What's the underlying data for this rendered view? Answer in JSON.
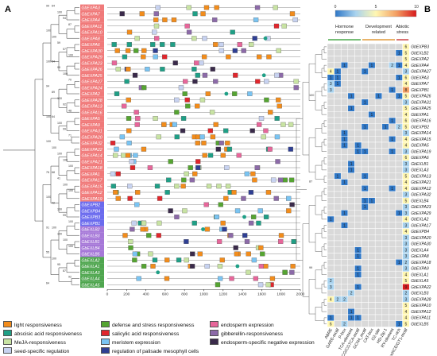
{
  "panels": {
    "a": "A",
    "b": "B"
  },
  "colors": {
    "light": "#f28c1b",
    "abscisic": "#1f9f86",
    "meja": "#c8e3a3",
    "seed": "#c7d2f0",
    "defense": "#55a431",
    "salicylic": "#e0262c",
    "meristem": "#7ac4f2",
    "palisade": "#2f3f93",
    "endosperm": "#e7669a",
    "gibberellin": "#8c6aa8",
    "endosperm_neg": "#3a2a4a",
    "groups": [
      "#f07a7a",
      "#6b6bee",
      "#a678d8",
      "#4fa64f"
    ]
  },
  "tree_support": [
    "99",
    "64",
    "100",
    "94",
    "87",
    "100",
    "100",
    "59",
    "57",
    "100",
    "100",
    "54",
    "99",
    "100",
    "70",
    "94",
    "89",
    "100",
    "92",
    "48",
    "100",
    "64",
    "100",
    "99",
    "71",
    "100",
    "100",
    "100",
    "100",
    "100",
    "76",
    "68",
    "41",
    "100",
    "100",
    "100",
    "42",
    "100",
    "99",
    "100",
    "91",
    "100",
    "100",
    "100",
    "100",
    "55",
    "100",
    "95",
    "87",
    "92",
    "64"
  ],
  "genes_a": [
    "GbEXPA3",
    "GbEXPA7",
    "GbEXPA4",
    "GbEXPA11",
    "GbEXPA10",
    "GbEXPA8",
    "GbEXPA6",
    "GbEXPA30",
    "GbEXPA29",
    "GbEXPA23",
    "GbEXPA26",
    "GbEXPA25",
    "GbEXPA27",
    "GbEXPA24",
    "GbEXPA2",
    "GbEXPA28",
    "GbEXPA13",
    "GbEXPA16",
    "GbEXPA5",
    "GbEXPA9",
    "GbEXPA31",
    "GbEXPA20",
    "GbEXPA32",
    "GbEXPA22",
    "GbEXPA14",
    "GbEXPA21",
    "GbEXPA18",
    "GbEXPA1",
    "GbEXPA17",
    "GbEXPA15",
    "GbEXPA12",
    "GbEXPA19",
    "GbEXPB2",
    "GbEXPB4",
    "GbEXPB3",
    "GbEXPB1",
    "GbEXLB2",
    "GbEXLB3",
    "GbEXLB1",
    "GbEXLB4",
    "GbEXLB5",
    "GbEXLA2",
    "GbEXLA1",
    "GbEXLA3",
    "GbEXLA4",
    "GbEXLA5"
  ],
  "group_of_gene": [
    0,
    0,
    0,
    0,
    0,
    0,
    0,
    0,
    0,
    0,
    0,
    0,
    0,
    0,
    0,
    0,
    0,
    0,
    0,
    0,
    0,
    0,
    0,
    0,
    0,
    0,
    0,
    0,
    0,
    0,
    0,
    0,
    1,
    1,
    1,
    1,
    2,
    2,
    2,
    2,
    2,
    3,
    3,
    3,
    3,
    3
  ],
  "axis_a": {
    "ticks": [
      "0",
      "200",
      "400",
      "600",
      "800",
      "1000",
      "1200",
      "1400",
      "1600",
      "1800",
      "2000"
    ],
    "max": 2000
  },
  "legend": [
    {
      "label": "light responsiveness",
      "color_key": "light"
    },
    {
      "label": "abscisic acid responsiveness",
      "color_key": "abscisic"
    },
    {
      "label": "MeJA-responsiveness",
      "color_key": "meja"
    },
    {
      "label": "seed-specific regulation",
      "color_key": "seed"
    },
    {
      "label": "defense and stress responsiveness",
      "color_key": "defense"
    },
    {
      "label": "salicylic acid responsiveness",
      "color_key": "salicylic"
    },
    {
      "label": "meristem expression",
      "color_key": "meristem"
    },
    {
      "label": "regulation of palisade mesophyll cells",
      "color_key": "palisade"
    },
    {
      "label": "endosperm expression",
      "color_key": "endosperm"
    },
    {
      "label": "gibberellin-responsiveness",
      "color_key": "gibberellin"
    },
    {
      "label": "endosperm-specific negative expression",
      "color_key": "endosperm_neg"
    }
  ],
  "colorbar": {
    "min": "0",
    "mid": "5",
    "max": "10",
    "colors": [
      "#2f77c6",
      "#a8d2ee",
      "#fff7b2",
      "#f3a064",
      "#d7191c"
    ]
  },
  "categories_b": [
    {
      "label": "Hormone response",
      "color": "#4aa84a"
    },
    {
      "label": "Development related",
      "color": "#e09a3a"
    },
    {
      "label": "Abiotic stress",
      "color": "#d05050"
    }
  ],
  "columns_b": [
    "ABRE",
    "GARE-motif",
    "P-box",
    "TCA-element",
    "TGACG/CGTCA-motif",
    "GCN4_motif",
    "CAT-box",
    "O2-site",
    "HD-Zip 1",
    "RY-element",
    "TC-rich",
    "G-box/ACE/GT1-motif"
  ],
  "genes_b": [
    "GbEXPB3",
    "GbEXLB2",
    "GbEXPA2",
    "GbEXPA4",
    "GbEXPA27",
    "GbEXPA3",
    "GbEXPA7",
    "GbEXPB1",
    "GbEXPA26",
    "GbEXPA31",
    "GbEXPA25",
    "GbEXPA1",
    "GbEXPA16",
    "GbEXPB2",
    "GbEXPA14",
    "GbEXPA15",
    "GbEXPA5",
    "GbEXPA19",
    "GbEXPA6",
    "GbEXLB1",
    "GbEXLA3",
    "GbEXPA13",
    "GbEXPA21",
    "GbEXPA12",
    "GbEXPA32",
    "GbEXLB4",
    "GbEXPA23",
    "GbEXPA29",
    "GbEXLA2",
    "GbEXPA17",
    "GbEXPB4",
    "GbEXPA20",
    "GbEXPA30",
    "GbEXLA4",
    "GbEXPA8",
    "GbEXPA18",
    "GbEXPA9",
    "GbEXLA1",
    "GbEXLA5",
    "GbEXPA22",
    "GbEXLB3",
    "GbEXPA28",
    "GbEXPA10",
    "GbEXPA12",
    "GbEXPA11",
    "GbEXLB5"
  ],
  "matrix_b": [
    [
      0,
      0,
      0,
      0,
      0,
      0,
      0,
      0,
      0,
      0,
      0,
      6
    ],
    [
      0,
      0,
      0,
      0,
      0,
      0,
      0,
      0,
      0,
      0,
      1,
      5
    ],
    [
      0,
      0,
      0,
      0,
      0,
      0,
      0,
      0,
      0,
      0,
      0,
      5
    ],
    [
      0,
      0,
      1,
      0,
      0,
      0,
      1,
      0,
      0,
      2,
      1,
      4
    ],
    [
      4,
      1,
      0,
      0,
      0,
      1,
      0,
      0,
      0,
      0,
      0,
      3
    ],
    [
      1,
      1,
      0,
      0,
      0,
      0,
      0,
      0,
      0,
      0,
      1,
      6
    ],
    [
      3,
      1,
      0,
      0,
      0,
      0,
      0,
      0,
      0,
      0,
      0,
      4
    ],
    [
      3,
      0,
      0,
      0,
      0,
      0,
      0,
      0,
      0,
      1,
      0,
      8
    ],
    [
      0,
      0,
      0,
      1,
      0,
      0,
      0,
      1,
      0,
      0,
      1,
      5
    ],
    [
      0,
      0,
      0,
      0,
      0,
      1,
      0,
      0,
      0,
      0,
      0,
      3
    ],
    [
      0,
      0,
      0,
      1,
      0,
      0,
      0,
      0,
      0,
      0,
      0,
      5
    ],
    [
      0,
      0,
      0,
      0,
      0,
      0,
      1,
      0,
      0,
      0,
      0,
      4
    ],
    [
      0,
      0,
      0,
      0,
      0,
      0,
      0,
      0,
      0,
      1,
      0,
      6
    ],
    [
      0,
      0,
      0,
      0,
      0,
      1,
      0,
      0,
      1,
      0,
      2,
      5
    ],
    [
      0,
      0,
      1,
      0,
      0,
      0,
      0,
      0,
      0,
      0,
      0,
      3
    ],
    [
      0,
      0,
      1,
      0,
      0,
      0,
      0,
      0,
      0,
      1,
      0,
      4
    ],
    [
      0,
      0,
      1,
      0,
      1,
      0,
      0,
      0,
      0,
      0,
      0,
      4
    ],
    [
      0,
      0,
      0,
      0,
      1,
      1,
      0,
      0,
      0,
      1,
      0,
      3
    ],
    [
      0,
      0,
      0,
      0,
      0,
      0,
      0,
      0,
      0,
      0,
      0,
      6
    ],
    [
      0,
      0,
      0,
      1,
      0,
      0,
      0,
      0,
      0,
      0,
      0,
      3
    ],
    [
      0,
      0,
      0,
      1,
      0,
      0,
      0,
      0,
      0,
      0,
      0,
      3
    ],
    [
      0,
      1,
      0,
      0,
      0,
      1,
      0,
      0,
      0,
      0,
      0,
      5
    ],
    [
      0,
      0,
      1,
      0,
      0,
      0,
      0,
      0,
      0,
      0,
      0,
      4
    ],
    [
      0,
      0,
      0,
      0,
      0,
      1,
      0,
      0,
      0,
      1,
      0,
      4
    ],
    [
      0,
      0,
      0,
      0,
      0,
      0,
      0,
      0,
      0,
      0,
      0,
      3
    ],
    [
      0,
      0,
      0,
      0,
      0,
      1,
      1,
      0,
      0,
      0,
      0,
      5
    ],
    [
      0,
      0,
      0,
      0,
      0,
      1,
      0,
      0,
      0,
      0,
      0,
      3
    ],
    [
      0,
      0,
      1,
      0,
      0,
      0,
      0,
      0,
      0,
      0,
      1,
      3
    ],
    [
      1,
      0,
      0,
      0,
      0,
      0,
      0,
      0,
      0,
      0,
      0,
      4
    ],
    [
      0,
      0,
      1,
      0,
      0,
      0,
      0,
      0,
      0,
      0,
      0,
      3
    ],
    [
      0,
      0,
      0,
      0,
      0,
      0,
      0,
      0,
      0,
      0,
      0,
      4
    ],
    [
      0,
      0,
      0,
      0,
      0,
      0,
      0,
      0,
      0,
      0,
      0,
      3
    ],
    [
      0,
      0,
      0,
      0,
      0,
      0,
      0,
      0,
      0,
      0,
      0,
      3
    ],
    [
      0,
      0,
      0,
      0,
      1,
      0,
      0,
      0,
      0,
      0,
      0,
      3
    ],
    [
      0,
      0,
      0,
      0,
      1,
      0,
      0,
      0,
      0,
      0,
      0,
      3
    ],
    [
      0,
      0,
      0,
      0,
      0,
      0,
      0,
      0,
      0,
      0,
      1,
      2
    ],
    [
      0,
      0,
      0,
      0,
      1,
      0,
      0,
      0,
      0,
      0,
      0,
      3
    ],
    [
      0,
      0,
      0,
      0,
      1,
      0,
      0,
      0,
      0,
      0,
      0,
      4
    ],
    [
      2,
      0,
      0,
      0,
      0,
      0,
      0,
      0,
      0,
      0,
      0,
      5
    ],
    [
      3,
      0,
      0,
      0,
      1,
      0,
      0,
      0,
      0,
      0,
      0,
      9
    ],
    [
      0,
      0,
      0,
      2,
      0,
      0,
      0,
      0,
      0,
      0,
      0,
      2
    ],
    [
      4,
      2,
      2,
      0,
      0,
      0,
      0,
      0,
      0,
      0,
      0,
      3
    ],
    [
      0,
      0,
      0,
      0,
      0,
      0,
      0,
      0,
      0,
      0,
      0,
      5
    ],
    [
      0,
      0,
      0,
      1,
      0,
      0,
      0,
      0,
      0,
      0,
      0,
      4
    ],
    [
      1,
      0,
      0,
      1,
      1,
      0,
      0,
      0,
      0,
      0,
      0,
      4
    ],
    [
      6,
      0,
      2,
      0,
      0,
      0,
      0,
      0,
      0,
      0,
      1,
      5
    ]
  ],
  "tree_b_support": [
    "100",
    "87",
    "99"
  ]
}
